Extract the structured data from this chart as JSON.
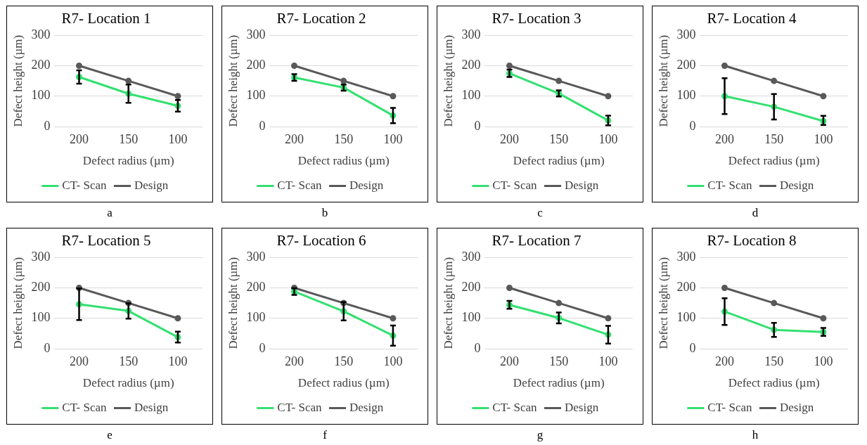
{
  "chart_data": [
    {
      "type": "line",
      "title": "R7- Location 1",
      "xlabel": "Defect radius (µm)",
      "ylabel": "Defect height (µm)",
      "categories": [
        "200",
        "150",
        "100"
      ],
      "ylim": [
        0,
        300
      ],
      "yticks": [
        0,
        100,
        200,
        300
      ],
      "grid": "y",
      "legend": "bottom",
      "marker": "circle",
      "annotations": [
        "a"
      ],
      "series": [
        {
          "name": "CT- Scan",
          "color": "#33e070",
          "values": [
            163,
            108,
            68
          ],
          "errors": [
            22,
            30,
            19
          ]
        },
        {
          "name": "Design",
          "color": "#595959",
          "values": [
            200,
            150,
            100
          ]
        }
      ]
    },
    {
      "type": "line",
      "title": "R7- Location 2",
      "xlabel": "Defect radius (µm)",
      "ylabel": "Defect height (µm)",
      "categories": [
        "200",
        "150",
        "100"
      ],
      "ylim": [
        0,
        300
      ],
      "yticks": [
        0,
        100,
        200,
        300
      ],
      "grid": "y",
      "legend": "bottom",
      "marker": "circle",
      "annotations": [
        "b"
      ],
      "series": [
        {
          "name": "CT- Scan",
          "color": "#33e070",
          "values": [
            161,
            128,
            36
          ],
          "errors": [
            11,
            10,
            25
          ]
        },
        {
          "name": "Design",
          "color": "#595959",
          "values": [
            200,
            150,
            100
          ]
        }
      ]
    },
    {
      "type": "line",
      "title": "R7- Location 3",
      "xlabel": "Defect radius (µm)",
      "ylabel": "Defect height (µm)",
      "categories": [
        "200",
        "150",
        "100"
      ],
      "ylim": [
        0,
        300
      ],
      "yticks": [
        0,
        100,
        200,
        300
      ],
      "grid": "y",
      "legend": "bottom",
      "marker": "circle",
      "annotations": [
        "c"
      ],
      "series": [
        {
          "name": "CT- Scan",
          "color": "#33e070",
          "values": [
            175,
            109,
            20
          ],
          "errors": [
            12,
            10,
            16
          ]
        },
        {
          "name": "Design",
          "color": "#595959",
          "values": [
            200,
            150,
            100
          ]
        }
      ]
    },
    {
      "type": "line",
      "title": "R7- Location 4",
      "xlabel": "Defect radius (µm)",
      "ylabel": "Defect height (µm)",
      "categories": [
        "200",
        "150",
        "100"
      ],
      "ylim": [
        0,
        300
      ],
      "yticks": [
        0,
        100,
        200,
        300
      ],
      "grid": "y",
      "legend": "bottom",
      "marker": "circle",
      "annotations": [
        "d"
      ],
      "series": [
        {
          "name": "CT- Scan",
          "color": "#33e070",
          "values": [
            100,
            65,
            18
          ],
          "errors": [
            59,
            42,
            [
              5,
              35
            ]
          ]
        },
        {
          "name": "Design",
          "color": "#595959",
          "values": [
            200,
            150,
            100
          ]
        }
      ]
    },
    {
      "type": "line",
      "title": "R7- Location 5",
      "xlabel": "Defect radius (µm)",
      "ylabel": "Defect height (µm)",
      "categories": [
        "200",
        "150",
        "100"
      ],
      "ylim": [
        0,
        300
      ],
      "yticks": [
        0,
        100,
        200,
        300
      ],
      "grid": "y",
      "legend": "bottom",
      "marker": "circle",
      "annotations": [
        "e"
      ],
      "series": [
        {
          "name": "CT- Scan",
          "color": "#33e070",
          "values": [
            146,
            124,
            38
          ],
          "errors": [
            52,
            25,
            18
          ]
        },
        {
          "name": "Design",
          "color": "#595959",
          "values": [
            200,
            150,
            100
          ]
        }
      ]
    },
    {
      "type": "line",
      "title": "R7- Location 6",
      "xlabel": "Defect radius (µm)",
      "ylabel": "Defect height (µm)",
      "categories": [
        "200",
        "150",
        "100"
      ],
      "ylim": [
        0,
        300
      ],
      "yticks": [
        0,
        100,
        200,
        300
      ],
      "grid": "y",
      "legend": "bottom",
      "marker": "circle",
      "annotations": [
        "f"
      ],
      "series": [
        {
          "name": "CT- Scan",
          "color": "#33e070",
          "values": [
            188,
            123,
            43
          ],
          "errors": [
            11,
            30,
            33
          ]
        },
        {
          "name": "Design",
          "color": "#595959",
          "values": [
            200,
            150,
            100
          ]
        }
      ]
    },
    {
      "type": "line",
      "title": "R7- Location 7",
      "xlabel": "Defect radius (µm)",
      "ylabel": "Defect height (µm)",
      "categories": [
        "200",
        "150",
        "100"
      ],
      "ylim": [
        0,
        300
      ],
      "yticks": [
        0,
        100,
        200,
        300
      ],
      "grid": "y",
      "legend": "bottom",
      "marker": "circle",
      "annotations": [
        "g"
      ],
      "series": [
        {
          "name": "CT- Scan",
          "color": "#33e070",
          "values": [
            144,
            101,
            46
          ],
          "errors": [
            13,
            18,
            29
          ]
        },
        {
          "name": "Design",
          "color": "#595959",
          "values": [
            200,
            150,
            100
          ]
        }
      ]
    },
    {
      "type": "line",
      "title": "R7- Location 8",
      "xlabel": "Defect radius (µm)",
      "ylabel": "Defect height (µm)",
      "categories": [
        "200",
        "150",
        "100"
      ],
      "ylim": [
        0,
        300
      ],
      "yticks": [
        0,
        100,
        200,
        300
      ],
      "grid": "y",
      "legend": "bottom",
      "marker": "circle",
      "annotations": [
        "h"
      ],
      "series": [
        {
          "name": "CT- Scan",
          "color": "#33e070",
          "values": [
            122,
            62,
            55
          ],
          "errors": [
            44,
            23,
            13
          ]
        },
        {
          "name": "Design",
          "color": "#595959",
          "values": [
            200,
            150,
            100
          ]
        }
      ]
    }
  ]
}
